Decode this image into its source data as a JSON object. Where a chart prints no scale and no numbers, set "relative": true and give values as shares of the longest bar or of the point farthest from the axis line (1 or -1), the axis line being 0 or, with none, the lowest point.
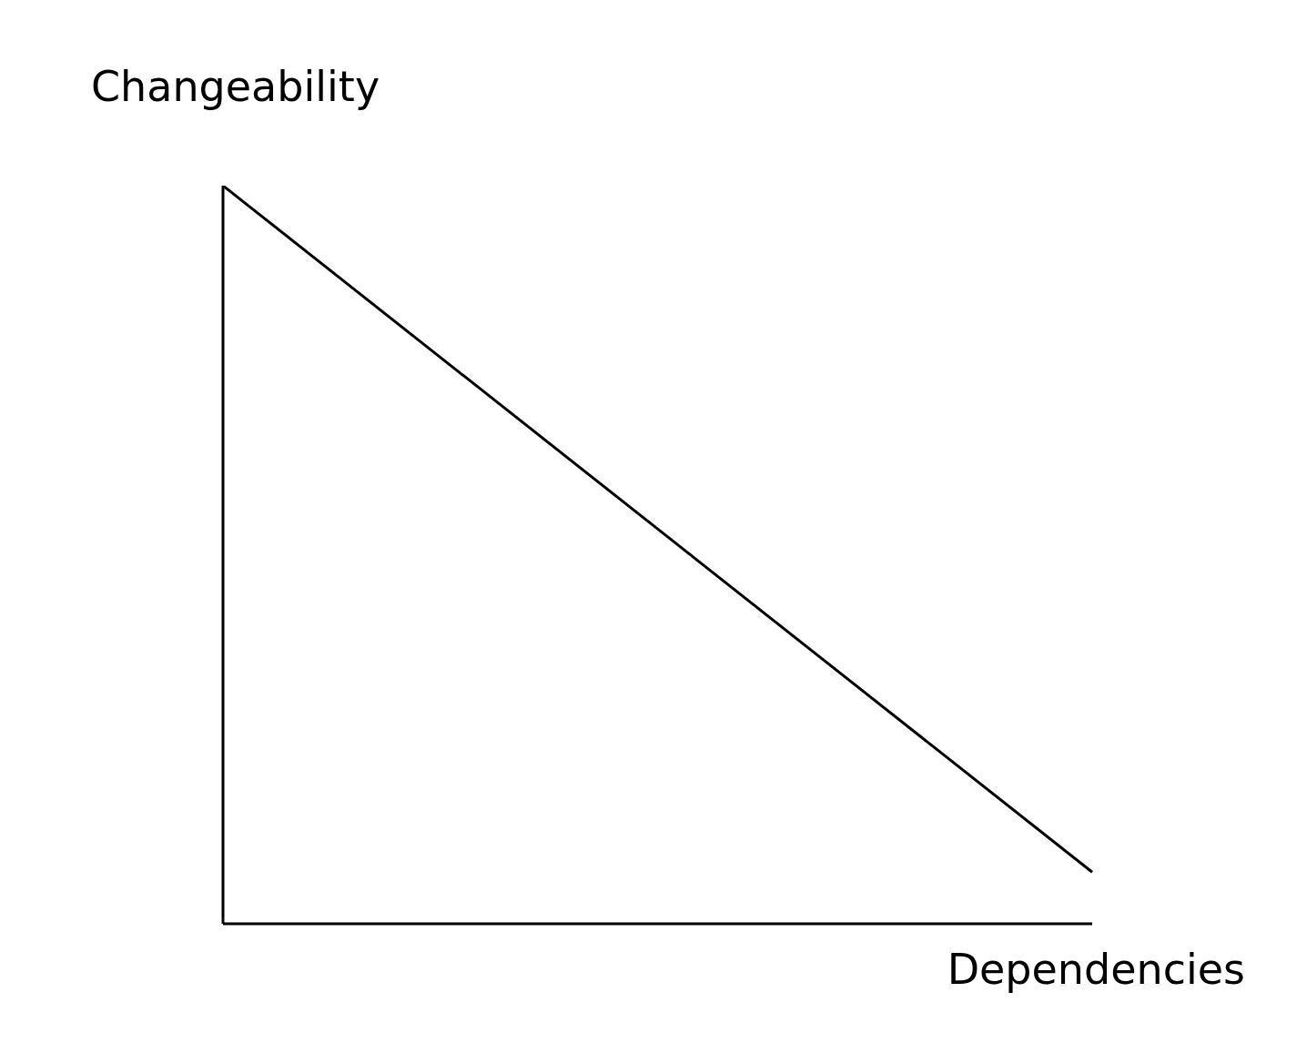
{
  "chart_data": {
    "type": "line",
    "xlabel": "Dependencies",
    "ylabel": "Changeability",
    "categories": [
      null,
      null
    ],
    "series": [
      {
        "color": "#000000",
        "values": [
          1,
          0.07
        ]
      }
    ],
    "relative": true,
    "marker": "none",
    "tick_labels": false
  }
}
